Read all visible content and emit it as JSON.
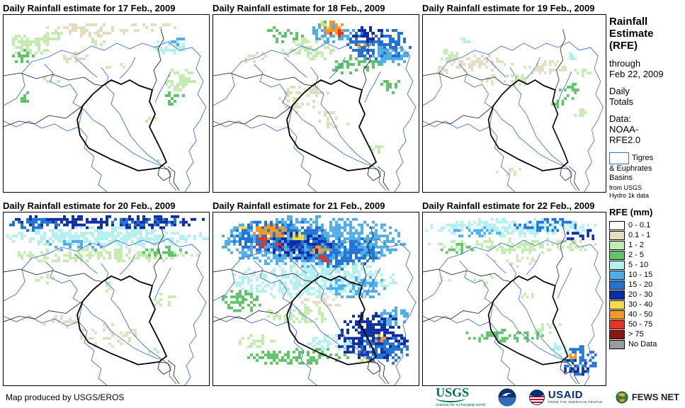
{
  "panels": [
    {
      "title": "Daily Rainfall estimate for 17 Feb., 2009",
      "rain": [
        [
          118,
          22,
          62,
          10,
          "0.1-1",
          0.45
        ],
        [
          205,
          18,
          40,
          8,
          "0.1-1",
          0.4
        ],
        [
          38,
          42,
          34,
          16,
          "1-2",
          0.5
        ],
        [
          24,
          58,
          18,
          10,
          "2-5",
          0.45
        ],
        [
          66,
          30,
          18,
          8,
          "1-2",
          0.4
        ],
        [
          232,
          44,
          26,
          14,
          "5-10",
          0.55
        ],
        [
          246,
          38,
          13,
          7,
          "10-15",
          0.5
        ],
        [
          250,
          92,
          24,
          18,
          "1-2",
          0.5
        ],
        [
          240,
          118,
          18,
          11,
          "2-5",
          0.4
        ],
        [
          70,
          92,
          14,
          9,
          "1-2",
          0.4
        ],
        [
          30,
          118,
          11,
          9,
          "2-5",
          0.4
        ],
        [
          208,
          148,
          10,
          7,
          "1-2",
          0.35
        ],
        [
          100,
          60,
          20,
          8,
          "0.1-1",
          0.35
        ],
        [
          160,
          70,
          25,
          8,
          "0.1-1",
          0.3
        ],
        [
          216,
          204,
          8,
          6,
          "1-2",
          0.3
        ],
        [
          135,
          40,
          20,
          8,
          "1-2",
          0.35
        ]
      ]
    },
    {
      "title": "Daily Rainfall estimate for 18 Feb., 2009",
      "rain": [
        [
          140,
          48,
          45,
          18,
          "1-2",
          0.45
        ],
        [
          100,
          28,
          32,
          12,
          "2-5",
          0.4
        ],
        [
          200,
          70,
          40,
          14,
          "2-5",
          0.4
        ],
        [
          235,
          42,
          45,
          24,
          "15-20",
          0.6
        ],
        [
          252,
          58,
          28,
          16,
          "10-15",
          0.55
        ],
        [
          222,
          28,
          26,
          12,
          "20-30",
          0.5
        ],
        [
          168,
          24,
          32,
          16,
          "10-15",
          0.6
        ],
        [
          170,
          18,
          18,
          10,
          "40-50",
          0.55
        ],
        [
          173,
          27,
          11,
          7,
          "50-75",
          0.5
        ],
        [
          158,
          14,
          9,
          6,
          "30-40",
          0.5
        ],
        [
          208,
          44,
          8,
          6,
          "40-50",
          0.45
        ],
        [
          128,
          118,
          40,
          22,
          "0.1-1",
          0.3
        ],
        [
          168,
          148,
          28,
          16,
          "0.1-1",
          0.28
        ],
        [
          230,
          188,
          10,
          7,
          "1-2",
          0.3
        ],
        [
          60,
          60,
          20,
          10,
          "0.1-1",
          0.3
        ],
        [
          255,
          100,
          20,
          12,
          "2-5",
          0.35
        ]
      ]
    },
    {
      "title": "Daily Rainfall estimate for 19 Feb., 2009",
      "rain": [
        [
          88,
          68,
          58,
          11,
          "0.1-1",
          0.45
        ],
        [
          198,
          74,
          40,
          10,
          "0.1-1",
          0.4
        ],
        [
          42,
          58,
          18,
          9,
          "1-2",
          0.4
        ],
        [
          148,
          92,
          24,
          9,
          "1-2",
          0.4
        ],
        [
          228,
          108,
          24,
          14,
          "2-5",
          0.45
        ],
        [
          248,
          138,
          14,
          9,
          "1-2",
          0.4
        ],
        [
          238,
          58,
          11,
          7,
          "5-10",
          0.45
        ],
        [
          68,
          38,
          9,
          6,
          "5-10",
          0.35
        ],
        [
          214,
          128,
          11,
          9,
          "2-5",
          0.4
        ],
        [
          138,
          222,
          28,
          7,
          "0.1-1",
          0.3
        ],
        [
          108,
          92,
          16,
          7,
          "0.1-1",
          0.3
        ],
        [
          255,
          80,
          14,
          8,
          "1-2",
          0.4
        ],
        [
          30,
          80,
          14,
          7,
          "0.1-1",
          0.3
        ]
      ]
    },
    {
      "title": "Daily Rainfall estimate for 20 Feb., 2009",
      "rain": [
        [
          145,
          13,
          148,
          11,
          "20-30",
          0.6
        ],
        [
          42,
          18,
          40,
          9,
          "15-20",
          0.5
        ],
        [
          200,
          14,
          60,
          8,
          "15-20",
          0.45
        ],
        [
          145,
          36,
          148,
          15,
          "5-10",
          0.65
        ],
        [
          100,
          48,
          55,
          9,
          "10-15",
          0.4
        ],
        [
          145,
          62,
          140,
          11,
          "1-2",
          0.5
        ],
        [
          225,
          58,
          38,
          9,
          "2-5",
          0.45
        ],
        [
          58,
          98,
          18,
          9,
          "1-2",
          0.35
        ],
        [
          148,
          108,
          13,
          7,
          "1-2",
          0.3
        ],
        [
          228,
          128,
          18,
          11,
          "1-2",
          0.35
        ],
        [
          148,
          178,
          48,
          18,
          "0.1-1",
          0.28
        ],
        [
          82,
          158,
          28,
          11,
          "0.1-1",
          0.28
        ],
        [
          244,
          222,
          13,
          9,
          "5-10",
          0.4
        ],
        [
          210,
          200,
          12,
          8,
          "1-2",
          0.3
        ]
      ]
    },
    {
      "title": "Daily Rainfall estimate for 21 Feb., 2009",
      "rain": [
        [
          140,
          42,
          132,
          38,
          "10-15",
          0.7
        ],
        [
          92,
          34,
          68,
          24,
          "15-20",
          0.6
        ],
        [
          182,
          58,
          58,
          24,
          "15-20",
          0.55
        ],
        [
          122,
          48,
          48,
          20,
          "20-30",
          0.55
        ],
        [
          142,
          98,
          118,
          28,
          "5-10",
          0.6
        ],
        [
          202,
          108,
          48,
          18,
          "10-15",
          0.5
        ],
        [
          80,
          28,
          24,
          11,
          "40-50",
          0.6
        ],
        [
          68,
          44,
          14,
          8,
          "50-75",
          0.5
        ],
        [
          120,
          34,
          11,
          8,
          "30-40",
          0.55
        ],
        [
          150,
          54,
          13,
          8,
          "40-50",
          0.5
        ],
        [
          156,
          66,
          9,
          6,
          "50-75",
          0.45
        ],
        [
          44,
          24,
          9,
          6,
          "30-40",
          0.5
        ],
        [
          96,
          48,
          10,
          6,
          "50-75",
          0.4
        ],
        [
          150,
          128,
          40,
          12,
          "0.1-1",
          0.3
        ],
        [
          40,
          128,
          28,
          18,
          "2-5",
          0.5
        ],
        [
          118,
          148,
          55,
          14,
          "1-2",
          0.45
        ],
        [
          224,
          180,
          52,
          36,
          "20-30",
          0.65
        ],
        [
          240,
          198,
          38,
          22,
          "15-20",
          0.55
        ],
        [
          234,
          184,
          9,
          6,
          "40-50",
          0.5
        ],
        [
          212,
          214,
          8,
          5,
          "30-40",
          0.45
        ],
        [
          118,
          208,
          75,
          13,
          "2-5",
          0.5
        ],
        [
          62,
          188,
          28,
          11,
          "1-2",
          0.4
        ],
        [
          160,
          188,
          38,
          13,
          "5-10",
          0.5
        ],
        [
          252,
          150,
          24,
          14,
          "10-15",
          0.5
        ]
      ]
    },
    {
      "title": "Daily Rainfall estimate for 22 Feb., 2009",
      "rain": [
        [
          145,
          22,
          148,
          13,
          "5-10",
          0.6
        ],
        [
          198,
          18,
          58,
          9,
          "15-20",
          0.5
        ],
        [
          82,
          28,
          48,
          9,
          "10-15",
          0.45
        ],
        [
          250,
          32,
          28,
          9,
          "20-30",
          0.4
        ],
        [
          145,
          48,
          140,
          11,
          "1-2",
          0.5
        ],
        [
          58,
          54,
          28,
          9,
          "2-5",
          0.4
        ],
        [
          150,
          70,
          40,
          8,
          "0.1-1",
          0.3
        ],
        [
          98,
          98,
          18,
          9,
          "1-2",
          0.3
        ],
        [
          168,
          118,
          13,
          7,
          "1-2",
          0.3
        ],
        [
          128,
          178,
          65,
          11,
          "2-5",
          0.45
        ],
        [
          198,
          168,
          28,
          9,
          "1-2",
          0.4
        ],
        [
          252,
          214,
          32,
          22,
          "15-20",
          0.55
        ],
        [
          244,
          224,
          22,
          13,
          "20-30",
          0.5
        ],
        [
          238,
          208,
          6,
          4,
          "40-50",
          0.5
        ],
        [
          218,
          198,
          18,
          11,
          "5-10",
          0.4
        ],
        [
          30,
          98,
          12,
          7,
          "0.1-1",
          0.3
        ]
      ]
    }
  ],
  "sidebar": {
    "title": "Rainfall\nEstimate\n(RFE)",
    "through": "through\nFeb 22, 2009",
    "period": "Daily\nTotals",
    "data_source": "Data:\nNOAA-\nRFE2.0",
    "basins_line1": "Tigres",
    "basins_rest": "& Euphrates\nBasins",
    "basins_note": "from USGS\nHydro 1k data"
  },
  "legend": {
    "title": "RFE (mm)",
    "items": [
      {
        "key": "0-0.1",
        "label": "0 - 0.1"
      },
      {
        "key": "0.1-1",
        "label": "0.1 - 1"
      },
      {
        "key": "1-2",
        "label": "1 - 2"
      },
      {
        "key": "2-5",
        "label": "2 - 5"
      },
      {
        "key": "5-10",
        "label": "5 - 10"
      },
      {
        "key": "10-15",
        "label": "10 - 15"
      },
      {
        "key": "15-20",
        "label": "15 - 20"
      },
      {
        "key": "20-30",
        "label": "20 - 30"
      },
      {
        "key": "30-40",
        "label": "30 - 40"
      },
      {
        "key": "40-50",
        "label": "40 - 50"
      },
      {
        "key": "50-75",
        "label": "50 - 75"
      },
      {
        "key": ">75",
        "label": "> 75"
      },
      {
        "key": "nodata",
        "label": "No Data"
      }
    ]
  },
  "colors": {
    "0-0.1": "#FFFFFF",
    "0.1-1": "#E3DDC1",
    "1-2": "#C5ECB0",
    "2-5": "#5FC46A",
    "5-10": "#B5F0F1",
    "10-15": "#4FADE8",
    "15-20": "#2273D3",
    "20-30": "#0D2EA3",
    "30-40": "#F3DC48",
    "40-50": "#F79726",
    "50-75": "#EB3223",
    ">75": "#8C1710",
    "nodata": "#9B9B9B",
    "basin_line": "#3D6FC8",
    "border_line": "#111111",
    "iraq_line": "#000000"
  },
  "basemap": {
    "blue": [
      [
        0,
        128,
        18,
        118,
        30,
        100,
        26,
        82,
        40,
        66,
        62,
        60,
        82,
        50,
        104,
        56,
        124,
        44,
        142,
        50,
        160,
        40,
        178,
        48,
        196,
        40,
        214,
        46,
        232,
        38,
        248,
        50,
        266,
        46,
        278,
        58,
        272,
        76,
        282,
        94,
        274,
        112,
        286,
        130,
        278,
        148,
        268,
        162,
        272,
        178,
        262,
        192,
        268,
        208,
        258,
        222,
        264,
        238,
        256,
        250
      ],
      [
        58,
        70,
        70,
        82,
        66,
        94,
        82,
        102,
        94,
        98,
        104,
        112,
        98,
        124,
        114,
        134,
        126,
        148,
        142,
        158,
        152,
        172,
        168,
        184,
        184,
        196,
        200,
        204,
        214,
        210,
        226,
        214
      ],
      [
        138,
        74,
        148,
        88,
        144,
        100,
        156,
        112,
        152,
        126,
        164,
        140,
        172,
        156,
        180,
        172,
        192,
        186,
        204,
        198,
        218,
        208,
        226,
        214
      ],
      [
        100,
        60,
        112,
        70,
        122,
        80,
        132,
        88
      ],
      [
        186,
        60,
        180,
        72,
        172,
        82,
        164,
        90
      ],
      [
        236,
        80,
        228,
        96,
        220,
        110,
        214,
        124
      ],
      [
        0,
        150,
        18,
        158,
        36,
        150,
        54,
        160,
        72,
        154,
        90,
        164,
        106,
        158,
        112,
        128
      ],
      [
        106,
        158,
        118,
        172,
        114,
        188,
        128,
        200,
        124,
        214,
        138,
        226,
        134,
        240,
        146,
        250
      ],
      [
        226,
        214,
        236,
        222,
        234,
        236,
        244,
        248
      ]
    ],
    "black": [
      [
        0,
        86,
        24,
        82,
        46,
        90,
        70,
        84,
        92,
        92,
        114,
        88,
        128,
        98,
        140,
        100
      ],
      [
        210,
        106,
        216,
        92,
        212,
        78,
        222,
        64,
        218,
        48,
        226,
        34,
        222,
        20
      ],
      [
        112,
        128,
        88,
        146,
        64,
        142,
        44,
        154,
        22,
        150,
        0,
        158
      ],
      [
        220,
        216,
        232,
        218,
        236,
        228,
        226,
        234,
        218,
        226,
        220,
        216
      ],
      [
        232,
        214,
        242,
        222,
        240,
        236,
        248,
        248
      ]
    ],
    "iraq": [
      152,
      92,
      166,
      98,
      178,
      92,
      192,
      100,
      204,
      104,
      210,
      106,
      206,
      122,
      214,
      140,
      206,
      158,
      216,
      178,
      224,
      194,
      230,
      208,
      222,
      214,
      220,
      216,
      206,
      218,
      190,
      220,
      152,
      204,
      120,
      188,
      108,
      170,
      104,
      148,
      112,
      128,
      126,
      112,
      140,
      100
    ]
  },
  "footer": {
    "credit": "Map produced by USGS/EROS",
    "usgs_label": "USGS",
    "usgs_tagline": "science for a changing world",
    "usaid_label": "USAID",
    "usaid_tagline": "FROM THE AMERICAN PEOPLE",
    "fewsnet_label": "FEWS NET"
  }
}
